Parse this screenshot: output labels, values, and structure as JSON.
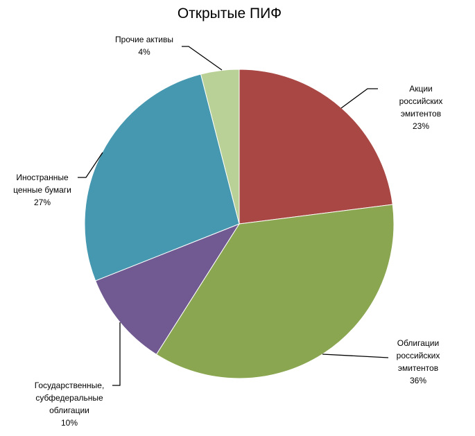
{
  "chart_data": {
    "type": "pie",
    "title": "Открытые ПИФ",
    "categories": [
      "Акции российских\nэмитентов",
      "Облигации\nроссийских\nэмитентов",
      "Государственные,\nсубфедеральные\nоблигации",
      "Иностранные\nценные бумаги",
      "Прочие активы"
    ],
    "values": [
      23,
      36,
      10,
      27,
      4
    ],
    "value_labels": [
      "23%",
      "36%",
      "10%",
      "27%",
      "4%"
    ],
    "colors": [
      "#a94744",
      "#8ba650",
      "#715a91",
      "#4598af",
      "#b9d196"
    ]
  }
}
